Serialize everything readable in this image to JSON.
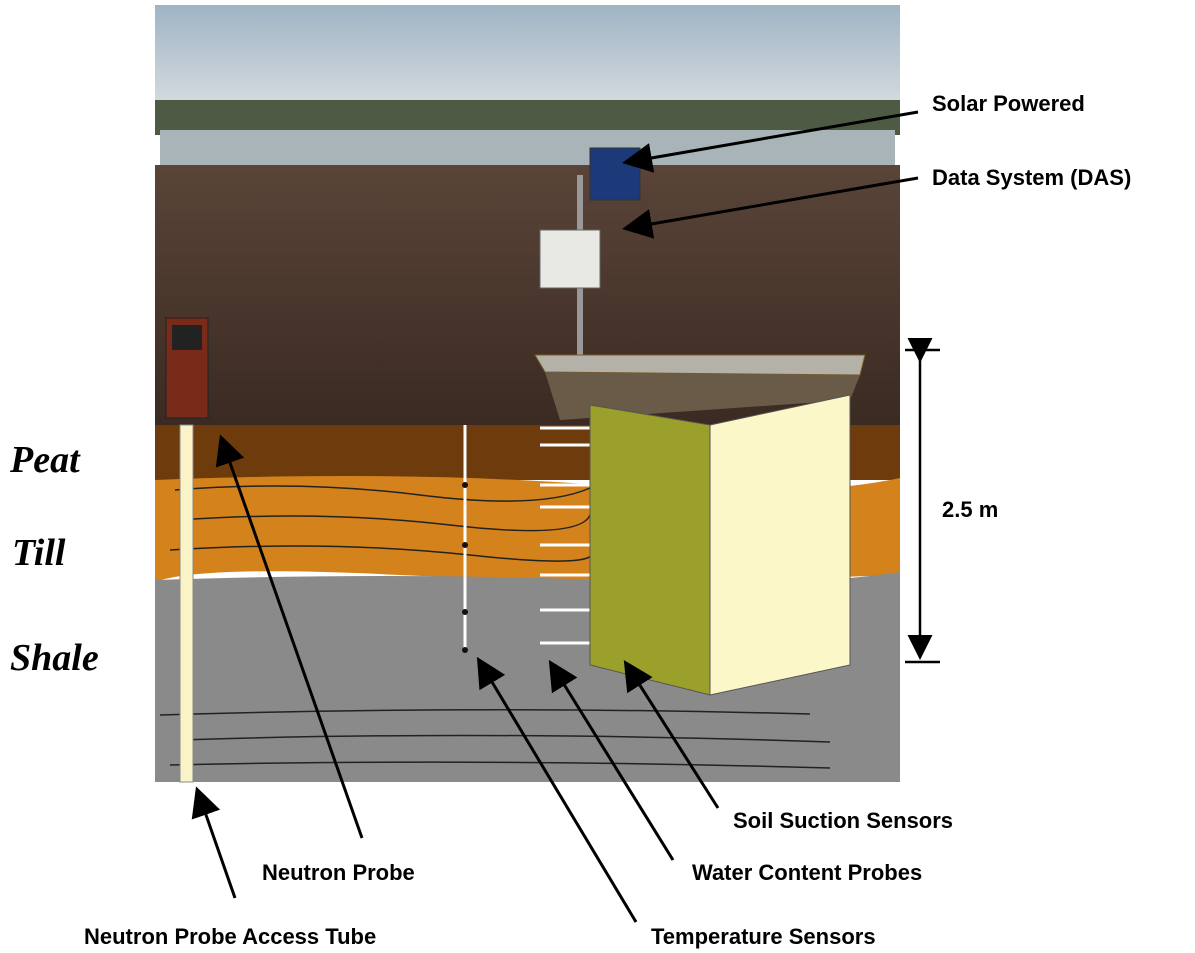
{
  "layers": [
    "Peat",
    "Till",
    "Shale"
  ],
  "callouts": {
    "solar": "Solar Powered",
    "das": "Data System (DAS)",
    "depth": "2.5 m",
    "suction": "Soil Suction Sensors",
    "water": "Water Content Probes",
    "temperature": "Temperature Sensors",
    "probe": "Neutron Probe",
    "tube": "Neutron Probe Access Tube"
  }
}
